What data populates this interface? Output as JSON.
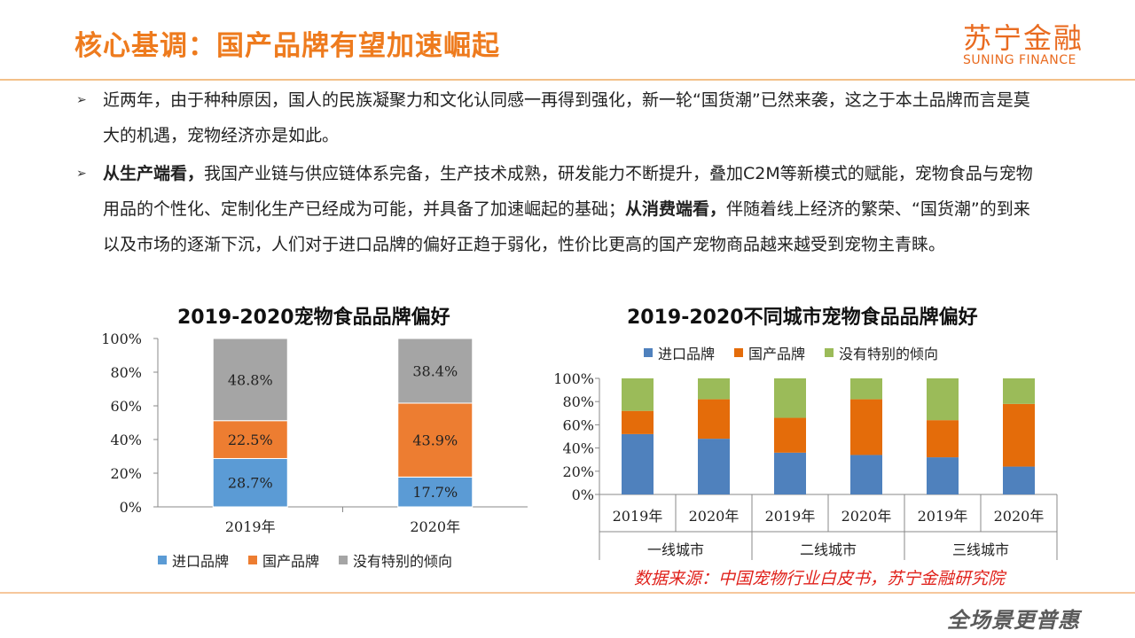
{
  "header": {
    "title": "核心基调：国产品牌有望加速崛起",
    "logo_cn": "苏宁金融",
    "logo_en": "SUNING FINANCE"
  },
  "bullets": {
    "b1": "近两年，由于种种原因，国人的民族凝聚力和文化认同感一再得到强化，新一轮“国货潮”已然来袭，这之于本土品牌而言是莫大的机遇，宠物经济亦是如此。",
    "b2_bold1": "从生产端看，",
    "b2_part1": "我国产业链与供应链体系完备，生产技术成熟，研发能力不断提升，叠加C2M等新模式的赋能，宠物食品与宠物用品的个性化、定制化生产已经成为可能，并具备了加速崛起的基础；",
    "b2_bold2": "从消费端看，",
    "b2_part2": "伴随着线上经济的繁荣、“国货潮”的到来以及市场的逐渐下沉，人们对于进口品牌的偏好正趋于弱化，性价比更高的国产宠物商品越来越受到宠物主青睐。"
  },
  "chart_data": [
    {
      "type": "bar",
      "stacked": true,
      "title": "2019-2020宠物食品品牌偏好",
      "categories": [
        "2019年",
        "2020年"
      ],
      "series": [
        {
          "name": "进口品牌",
          "values": [
            28.7,
            17.7
          ],
          "labels": [
            "28.7%",
            "17.7%"
          ],
          "color": "#5B9BD5"
        },
        {
          "name": "国产品牌",
          "values": [
            22.5,
            43.9
          ],
          "labels": [
            "22.5%",
            "43.9%"
          ],
          "color": "#ED7D31"
        },
        {
          "name": "没有特别的倾向",
          "values": [
            48.8,
            38.4
          ],
          "labels": [
            "48.8%",
            "38.4%"
          ],
          "color": "#A5A5A5"
        }
      ],
      "yticks": [
        "0%",
        "20%",
        "40%",
        "60%",
        "80%",
        "100%"
      ],
      "ylim": [
        0,
        100
      ],
      "legend_position": "bottom"
    },
    {
      "type": "bar",
      "stacked": true,
      "title": "2019-2020不同城市宠物食品品牌偏好",
      "categories": [
        "2019年",
        "2020年",
        "2019年",
        "2020年",
        "2019年",
        "2020年"
      ],
      "groups": [
        "一线城市",
        "二线城市",
        "三线城市"
      ],
      "series": [
        {
          "name": "进口品牌",
          "values": [
            52,
            48,
            36,
            34,
            32,
            24
          ],
          "color": "#4F81BD"
        },
        {
          "name": "国产品牌",
          "values": [
            20,
            34,
            30,
            48,
            32,
            54
          ],
          "color": "#E46C0A"
        },
        {
          "name": "没有特别的倾向",
          "values": [
            28,
            18,
            34,
            18,
            36,
            22
          ],
          "color": "#9BBB59"
        }
      ],
      "yticks": [
        "0%",
        "20%",
        "40%",
        "60%",
        "80%",
        "100%"
      ],
      "ylim": [
        0,
        100
      ],
      "legend_position": "top"
    }
  ],
  "source": "数据来源：中国宠物行业白皮书，苏宁金融研究院",
  "slogan": "全场景更普惠"
}
